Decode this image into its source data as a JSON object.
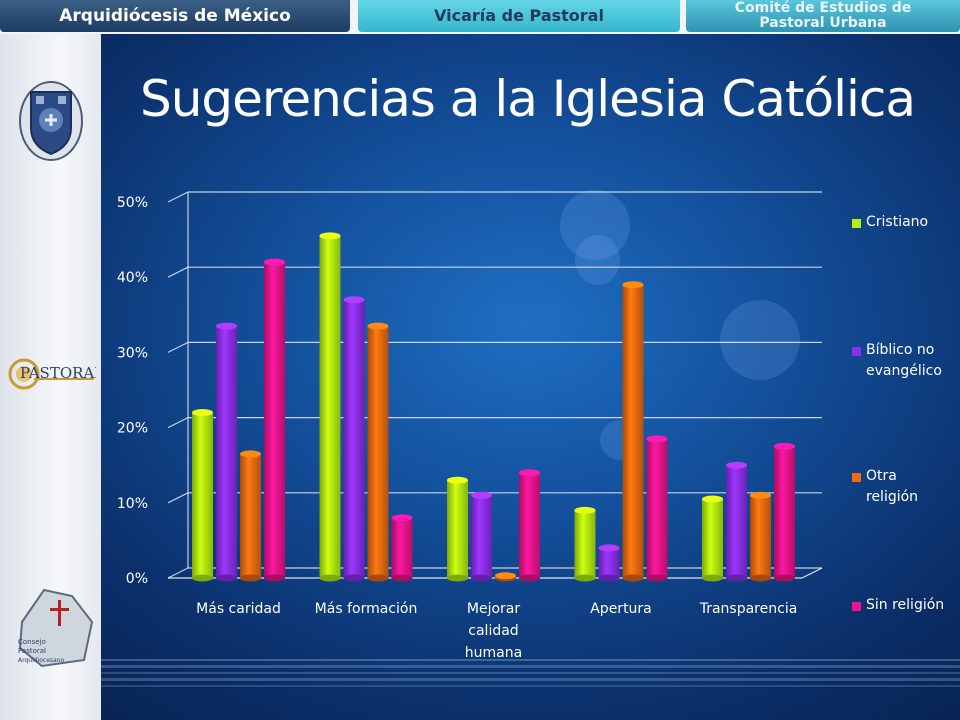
{
  "header": {
    "tab1": "Arquidiócesis de México",
    "tab2": "Vicaría de Pastoral",
    "tab3_line1": "Comité de Estudios de",
    "tab3_line2": "Pastoral Urbana"
  },
  "sidebar": {
    "logo2_text": "PASTORAL",
    "logo3_line1": "Consejo",
    "logo3_line2": "Pastoral",
    "logo3_line3": "Arquidiocesano"
  },
  "slide_title": "Sugerencias a la Iglesia Católica",
  "chart_data": {
    "type": "bar",
    "title": "",
    "xlabel": "",
    "ylabel": "",
    "ylim": [
      0,
      0.5
    ],
    "yticks": [
      {
        "value": 0,
        "label": "0%"
      },
      {
        "value": 0.1,
        "label": "10%"
      },
      {
        "value": 0.2,
        "label": "20%"
      },
      {
        "value": 0.3,
        "label": "30%"
      },
      {
        "value": 0.4,
        "label": "40%"
      },
      {
        "value": 0.5,
        "label": "50%"
      }
    ],
    "categories": [
      [
        "Más caridad"
      ],
      [
        "Más formación"
      ],
      [
        "Mejorar",
        "calidad",
        "humana"
      ],
      [
        "Apertura"
      ],
      [
        "Transparencia"
      ]
    ],
    "series": [
      {
        "name": "Cristiano",
        "legend": [
          "Cristiano"
        ],
        "color": "#b3f20f",
        "values": [
          0.22,
          0.455,
          0.13,
          0.09,
          0.105
        ]
      },
      {
        "name": "Bíblico no evangélico",
        "legend": [
          "Bíblico no",
          "evangélico"
        ],
        "color": "#8a2ff0",
        "values": [
          0.335,
          0.37,
          0.11,
          0.04,
          0.15
        ]
      },
      {
        "name": "Otra religión",
        "legend": [
          "Otra",
          "religión"
        ],
        "color": "#f06a10",
        "values": [
          0.165,
          0.335,
          0.003,
          0.39,
          0.11
        ]
      },
      {
        "name": "Sin religión",
        "legend": [
          "Sin religión"
        ],
        "color": "#f0148c",
        "values": [
          0.42,
          0.08,
          0.14,
          0.185,
          0.175
        ]
      }
    ],
    "grid": true,
    "legend_position": "right"
  }
}
